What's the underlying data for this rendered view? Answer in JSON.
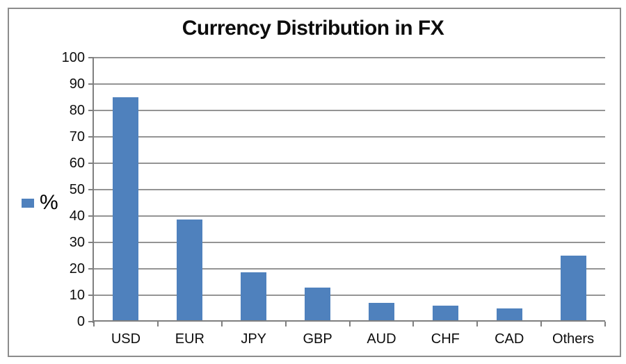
{
  "title": "Currency Distribution in FX",
  "legend": {
    "label": "%",
    "marker_color": "#4f81bd"
  },
  "colors": {
    "bar": "#4f81bd",
    "gridline": "#949494",
    "axis": "#7f7f7f",
    "chart_border": "#8c8c8c",
    "text": "#0d0d0d"
  },
  "chart_data": {
    "type": "bar",
    "title": "Currency Distribution in FX",
    "categories": [
      "USD",
      "EUR",
      "JPY",
      "GBP",
      "AUD",
      "CHF",
      "CAD",
      "Others"
    ],
    "values": [
      85,
      38.7,
      18.7,
      13,
      7,
      6,
      5,
      25
    ],
    "series_name": "%",
    "xlabel": "",
    "ylabel": "",
    "ylim": [
      0,
      100
    ],
    "yticks": [
      0,
      10,
      20,
      30,
      40,
      50,
      60,
      70,
      80,
      90,
      100
    ],
    "grid": true,
    "legend_position": "left"
  }
}
